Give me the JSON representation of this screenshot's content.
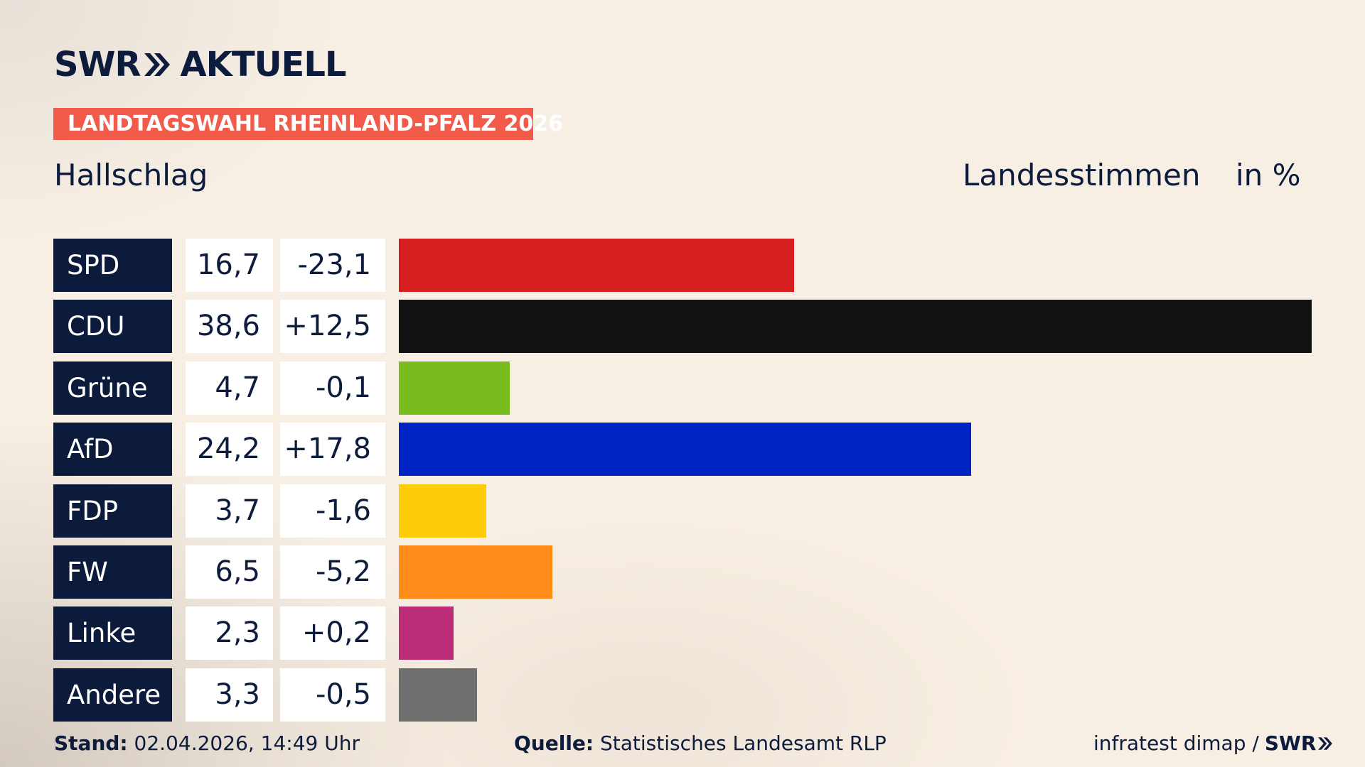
{
  "logo": {
    "brand": "SWR",
    "product": "AKTUELL"
  },
  "banner": {
    "label": "LANDTAGSWAHL RHEINLAND-PFALZ 2026"
  },
  "header": {
    "region": "Hallschlag",
    "metric": "Landesstimmen",
    "unit": "in %"
  },
  "chart_data": {
    "type": "bar",
    "orientation": "horizontal",
    "title": "Hallschlag",
    "categories": [
      "SPD",
      "CDU",
      "Grüne",
      "AfD",
      "FDP",
      "FW",
      "Linke",
      "Andere"
    ],
    "values": [
      16.7,
      38.6,
      4.7,
      24.2,
      3.7,
      6.5,
      2.3,
      3.3
    ],
    "value_labels": [
      "16,7",
      "38,6",
      "4,7",
      "24,2",
      "3,7",
      "6,5",
      "2,3",
      "3,3"
    ],
    "changes": [
      -23.1,
      12.5,
      -0.1,
      17.8,
      -1.6,
      -5.2,
      0.2,
      -0.5
    ],
    "change_labels": [
      "-23,1",
      "+12,5",
      "-0,1",
      "+17,8",
      "-1,6",
      "-5,2",
      "+0,2",
      "-0,5"
    ],
    "colors": [
      "#d81f1f",
      "#121212",
      "#78bc1e",
      "#0023c4",
      "#ffcc0a",
      "#ff8c19",
      "#bb2d76",
      "#6f6f6f"
    ],
    "xlim": [
      0,
      38.6
    ],
    "grid": false,
    "legend": "none"
  },
  "footer": {
    "stand_label": "Stand:",
    "stand_value": "02.04.2026, 14:49 Uhr",
    "source_label": "Quelle:",
    "source_value": "Statistisches Landesamt RLP",
    "pollster": "infratest dimap /",
    "brand": "SWR"
  },
  "colors": {
    "background": "#f8efe4",
    "navy": "#0c1a3c",
    "banner": "#f25b49"
  }
}
